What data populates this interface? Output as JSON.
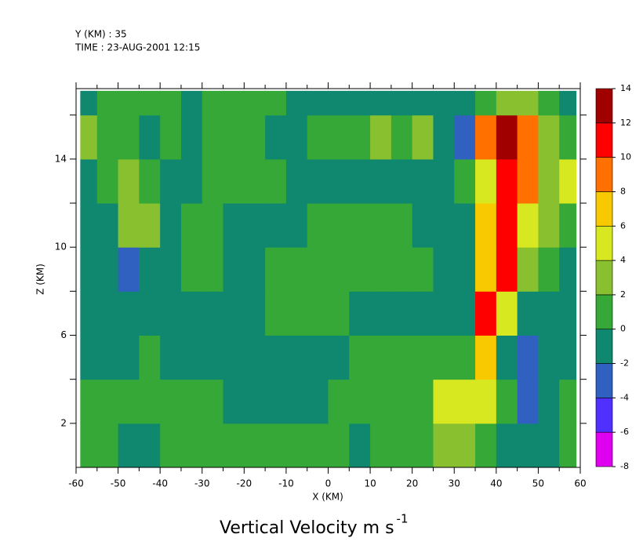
{
  "chart_data": {
    "type": "contour",
    "header": [
      "Y (KM) : 35",
      "TIME : 23-AUG-2001 12:15"
    ],
    "title": "Vertical Velocity m s",
    "title_superscript": "-1",
    "xlabel": "X (KM)",
    "ylabel": "Z (KM)",
    "xlim": [
      -60,
      60
    ],
    "ylim": [
      0,
      17.2
    ],
    "xticks": [
      -60,
      -50,
      -40,
      -30,
      -20,
      -10,
      0,
      10,
      20,
      30,
      40,
      50,
      60
    ],
    "xticks_minor": [
      -55,
      -45,
      -35,
      -25,
      -15,
      -5,
      5,
      15,
      25,
      35,
      45,
      55
    ],
    "yticks": [
      2,
      6,
      10,
      14
    ],
    "yticks_minor": [
      4,
      8,
      12,
      16
    ],
    "levels": [
      -8,
      -6,
      -4,
      -2,
      0,
      2,
      4,
      6,
      8,
      10,
      12,
      14
    ],
    "colors": [
      "#e000f0",
      "#5030ff",
      "#3060c0",
      "#108870",
      "#36a838",
      "#88c030",
      "#d8e820",
      "#f8c800",
      "#ff7000",
      "#ff0000",
      "#a00000"
    ],
    "x_edges": [
      -59,
      -55,
      -50,
      -45,
      -40,
      -35,
      -30,
      -25,
      -20,
      -15,
      -10,
      -5,
      0,
      5,
      10,
      15,
      20,
      25,
      30,
      35,
      40,
      45,
      50,
      55,
      59
    ],
    "z_edges": [
      0,
      2,
      4,
      6,
      8,
      10,
      12,
      14,
      16,
      17.1
    ],
    "values": [
      [
        1,
        1,
        -1,
        -1,
        1,
        1,
        1,
        1,
        1,
        1,
        1,
        1,
        1,
        -1,
        1,
        1,
        1,
        3,
        3,
        1,
        -1,
        -1,
        -1,
        1
      ],
      [
        1,
        1,
        1,
        1,
        1,
        1,
        1,
        -1,
        -1,
        -1,
        -1,
        -1,
        1,
        1,
        1,
        1,
        1,
        5,
        5,
        5,
        1,
        -3,
        -1,
        1
      ],
      [
        -1,
        -1,
        -1,
        1,
        -1,
        -1,
        -1,
        -1,
        -1,
        -1,
        -1,
        -1,
        -1,
        1,
        1,
        1,
        1,
        1,
        1,
        7,
        -1,
        -3,
        -1,
        -1
      ],
      [
        -1,
        -1,
        -1,
        -1,
        -1,
        -1,
        -1,
        -1,
        -1,
        1,
        1,
        1,
        1,
        -1,
        -1,
        -1,
        -1,
        -1,
        -1,
        11,
        5,
        -1,
        -1,
        -1
      ],
      [
        -1,
        -1,
        -3,
        -1,
        -1,
        1,
        1,
        -1,
        -1,
        1,
        1,
        1,
        1,
        1,
        1,
        1,
        1,
        -1,
        -1,
        7,
        11,
        3,
        1,
        -1
      ],
      [
        -1,
        -1,
        3,
        3,
        -1,
        1,
        1,
        -1,
        -1,
        -1,
        -1,
        1,
        1,
        1,
        1,
        1,
        -1,
        -1,
        -1,
        7,
        11,
        5,
        3,
        1
      ],
      [
        -1,
        1,
        3,
        1,
        -1,
        -1,
        1,
        1,
        1,
        1,
        -1,
        -1,
        -1,
        -1,
        -1,
        -1,
        -1,
        -1,
        1,
        5,
        11,
        9,
        3,
        5
      ],
      [
        3,
        1,
        1,
        -1,
        1,
        -1,
        1,
        1,
        1,
        -1,
        -1,
        1,
        1,
        1,
        3,
        1,
        3,
        -1,
        -3,
        9,
        13,
        9,
        3,
        1
      ],
      [
        -1,
        1,
        1,
        1,
        1,
        -1,
        1,
        1,
        1,
        1,
        -1,
        -1,
        -1,
        -1,
        -1,
        -1,
        -1,
        -1,
        -1,
        1,
        3,
        3,
        1,
        -1
      ]
    ]
  }
}
